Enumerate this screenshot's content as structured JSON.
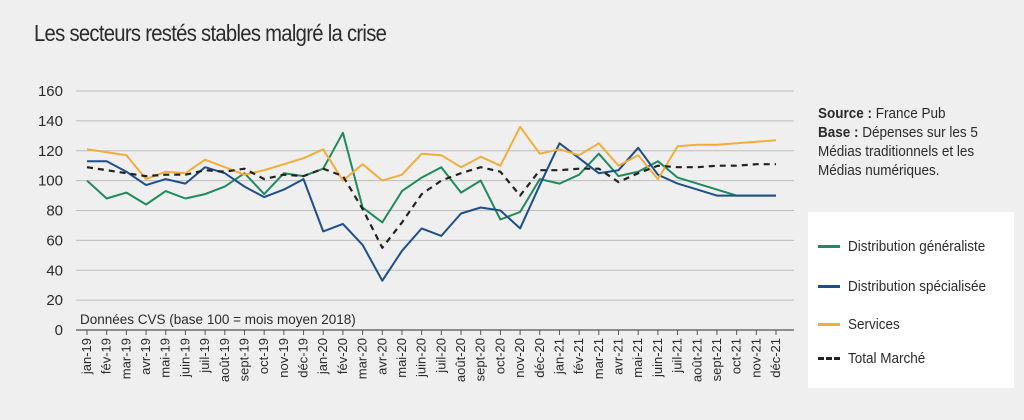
{
  "title": "Les secteurs restés stables malgré la crise",
  "source": {
    "source_label": "Source :",
    "source_value": "France Pub",
    "base_label": "Base :",
    "base_value": "Dépenses sur les 5 Médias traditionnels et les Médias numériques."
  },
  "chart_data": {
    "type": "line",
    "title": "Les secteurs restés stables malgré la crise",
    "note": "Données CVS (base 100 = mois moyen 2018)",
    "ylim": [
      0,
      160
    ],
    "yticks": [
      0,
      20,
      40,
      60,
      80,
      100,
      120,
      140,
      160
    ],
    "grid": "horizontal",
    "legend_position": "right",
    "categories": [
      "jan-19",
      "fév-19",
      "mar-19",
      "avr-19",
      "mai-19",
      "juin-19",
      "juil-19",
      "août-19",
      "sept-19",
      "oct-19",
      "nov-19",
      "déc-19",
      "jan-20",
      "fév-20",
      "mar-20",
      "avr-20",
      "mai-20",
      "juin-20",
      "juil-20",
      "août-20",
      "sept-20",
      "oct-20",
      "nov-20",
      "déc-20",
      "jan-21",
      "fév-21",
      "mar-21",
      "avr-21",
      "mai-21",
      "juin-21",
      "juil-21",
      "août-21",
      "sept-21",
      "oct-21",
      "nov-21",
      "déc-21"
    ],
    "series": [
      {
        "name": "Distribution généraliste",
        "color": "#1f8a5c",
        "dash": false,
        "values": [
          100,
          88,
          92,
          84,
          93,
          88,
          91,
          96,
          105,
          91,
          105,
          103,
          108,
          132,
          82,
          72,
          93,
          102,
          109,
          92,
          100,
          74,
          79,
          101,
          98,
          104,
          118,
          103,
          106,
          113,
          102,
          98,
          94,
          90,
          90,
          90
        ]
      },
      {
        "name": "Distribution spécialisée",
        "color": "#1f4e8c",
        "dash": false,
        "values": [
          113,
          113,
          106,
          97,
          101,
          98,
          109,
          105,
          96,
          89,
          94,
          101,
          66,
          71,
          57,
          33,
          53,
          68,
          63,
          78,
          82,
          80,
          68,
          97,
          125,
          115,
          105,
          107,
          122,
          104,
          98,
          94,
          90,
          90,
          90,
          90
        ]
      },
      {
        "name": "Services",
        "color": "#f2ad3a",
        "dash": false,
        "values": [
          121,
          119,
          117,
          101,
          106,
          105,
          114,
          109,
          104,
          107,
          111,
          115,
          121,
          100,
          111,
          100,
          104,
          118,
          117,
          109,
          116,
          110,
          136,
          118,
          121,
          117,
          125,
          110,
          117,
          101,
          123,
          124,
          124,
          125,
          126,
          127
        ]
      },
      {
        "name": "Total Marché",
        "color": "#222222",
        "dash": true,
        "values": [
          109,
          107,
          105,
          103,
          104,
          104,
          107,
          106,
          108,
          101,
          104,
          103,
          108,
          103,
          81,
          55,
          72,
          91,
          100,
          105,
          109,
          106,
          90,
          107,
          107,
          108,
          108,
          99,
          105,
          110,
          109,
          109,
          110,
          110,
          111,
          111
        ]
      }
    ]
  }
}
